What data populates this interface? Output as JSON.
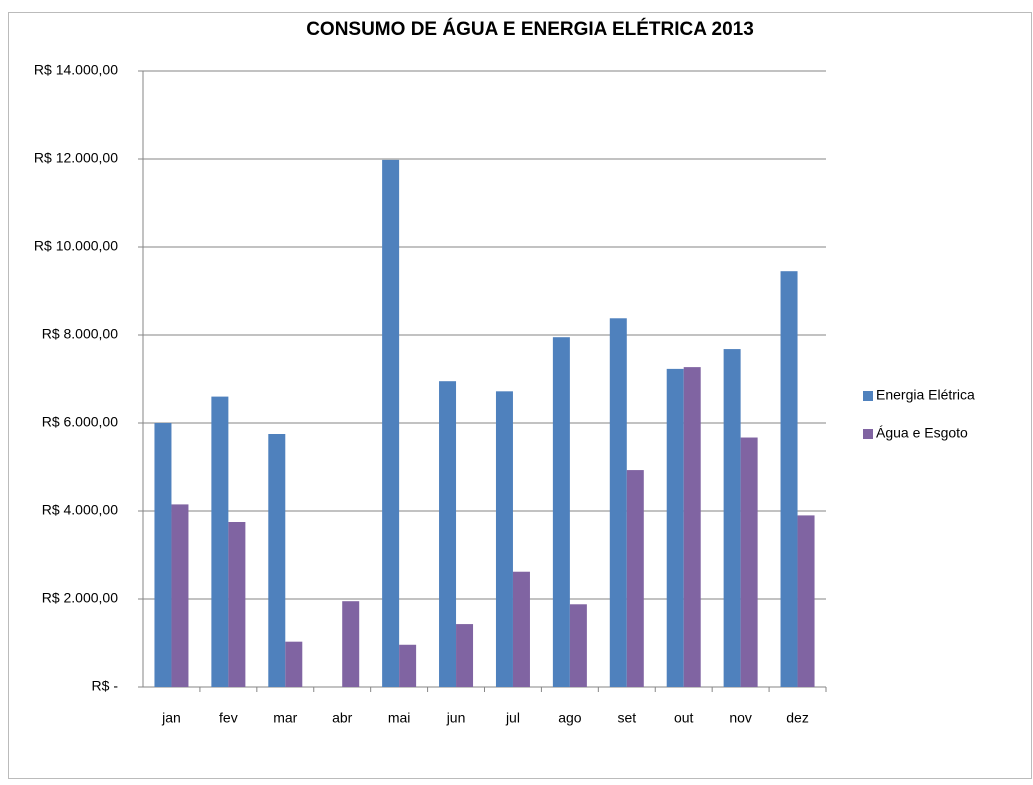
{
  "chart_data": {
    "type": "bar",
    "title": "CONSUMO DE ÁGUA E ENERGIA ELÉTRICA 2013",
    "categories": [
      "jan",
      "fev",
      "mar",
      "abr",
      "mai",
      "jun",
      "jul",
      "ago",
      "set",
      "out",
      "nov",
      "dez"
    ],
    "series": [
      {
        "name": "Energia Elétrica",
        "color": "#4f81bd",
        "values": [
          6000,
          6600,
          5750,
          null,
          11980,
          6950,
          6720,
          7950,
          8380,
          7230,
          7680,
          9450
        ]
      },
      {
        "name": "Água e Esgoto",
        "color": "#8064a2",
        "values": [
          4150,
          3750,
          1030,
          1950,
          960,
          1430,
          2620,
          1880,
          4930,
          7270,
          5670,
          3900
        ]
      }
    ],
    "ylim": [
      0,
      14000
    ],
    "yticks": [
      {
        "value": 0,
        "label": "R$ -"
      },
      {
        "value": 2000,
        "label": "R$ 2.000,00"
      },
      {
        "value": 4000,
        "label": "R$ 4.000,00"
      },
      {
        "value": 6000,
        "label": "R$ 6.000,00"
      },
      {
        "value": 8000,
        "label": "R$ 8.000,00"
      },
      {
        "value": 10000,
        "label": "R$ 10.000,00"
      },
      {
        "value": 12000,
        "label": "R$ 12.000,00"
      },
      {
        "value": 14000,
        "label": "R$ 14.000,00"
      }
    ],
    "grid": true,
    "legend": "right"
  }
}
